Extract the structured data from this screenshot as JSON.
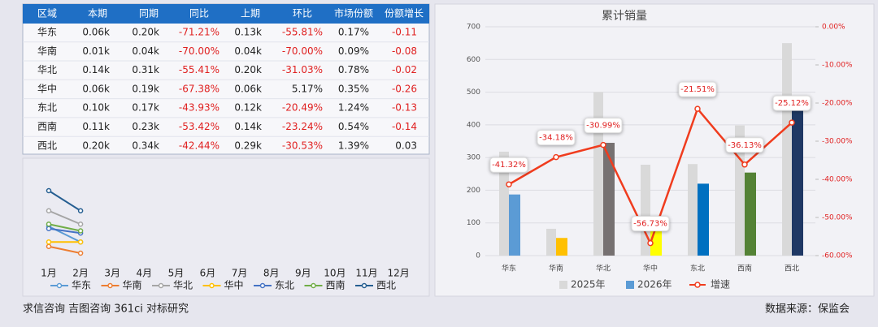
{
  "table": {
    "header": [
      "区域",
      "本期",
      "同期",
      "同比",
      "上期",
      "环比",
      "市场份额",
      "份额增长"
    ],
    "rows": [
      [
        "华东",
        "0.06k",
        "0.20k",
        "-71.21%",
        "0.13k",
        "-55.81%",
        "0.17%",
        "-0.11"
      ],
      [
        "华南",
        "0.01k",
        "0.04k",
        "-70.00%",
        "0.04k",
        "-70.00%",
        "0.09%",
        "-0.08"
      ],
      [
        "华北",
        "0.14k",
        "0.31k",
        "-55.41%",
        "0.20k",
        "-31.03%",
        "0.78%",
        "-0.02"
      ],
      [
        "华中",
        "0.06k",
        "0.19k",
        "-67.38%",
        "0.06k",
        "5.17%",
        "0.35%",
        "-0.26"
      ],
      [
        "东北",
        "0.10k",
        "0.17k",
        "-43.93%",
        "0.12k",
        "-20.49%",
        "1.24%",
        "-0.13"
      ],
      [
        "西南",
        "0.11k",
        "0.23k",
        "-53.42%",
        "0.14k",
        "-23.24%",
        "0.54%",
        "-0.14"
      ],
      [
        "西北",
        "0.20k",
        "0.34k",
        "-42.44%",
        "0.29k",
        "-30.53%",
        "1.39%",
        "0.03"
      ]
    ]
  },
  "chart_data": [
    {
      "type": "line",
      "categories": [
        "1月",
        "2月",
        "3月",
        "4月",
        "5月",
        "6月",
        "7月",
        "8月",
        "9月",
        "10月",
        "11月",
        "12月"
      ],
      "series": [
        {
          "name": "华东",
          "color": "#5b9bd5",
          "values": [
            130,
            60,
            null,
            null,
            null,
            null,
            null,
            null,
            null,
            null,
            null,
            null
          ]
        },
        {
          "name": "华南",
          "color": "#ed7d31",
          "values": [
            40,
            10,
            null,
            null,
            null,
            null,
            null,
            null,
            null,
            null,
            null,
            null
          ]
        },
        {
          "name": "华北",
          "color": "#a5a5a5",
          "values": [
            200,
            140,
            null,
            null,
            null,
            null,
            null,
            null,
            null,
            null,
            null,
            null
          ]
        },
        {
          "name": "华中",
          "color": "#ffc000",
          "values": [
            60,
            60,
            null,
            null,
            null,
            null,
            null,
            null,
            null,
            null,
            null,
            null
          ]
        },
        {
          "name": "东北",
          "color": "#4472c4",
          "values": [
            120,
            100,
            null,
            null,
            null,
            null,
            null,
            null,
            null,
            null,
            null,
            null
          ]
        },
        {
          "name": "西南",
          "color": "#70ad47",
          "values": [
            140,
            110,
            null,
            null,
            null,
            null,
            null,
            null,
            null,
            null,
            null,
            null
          ]
        },
        {
          "name": "西北",
          "color": "#255e91",
          "values": [
            290,
            200,
            null,
            null,
            null,
            null,
            null,
            null,
            null,
            null,
            null,
            null
          ]
        }
      ]
    },
    {
      "type": "bar",
      "title": "累计销量",
      "categories": [
        "华东",
        "华南",
        "华北",
        "华中",
        "东北",
        "西南",
        "西北"
      ],
      "series": [
        {
          "name": "2025年",
          "color": "#d9d9d9",
          "values": [
            318,
            82,
            500,
            278,
            280,
            398,
            650
          ]
        },
        {
          "name": "2026年",
          "color": "#5b9bd5",
          "colors": [
            "#5b9bd5",
            "#ffc000",
            "#767171",
            "#ffff00",
            "#0070c0",
            "#548235",
            "#1f3864"
          ],
          "values": [
            187,
            54,
            345,
            120,
            220,
            254,
            487
          ]
        },
        {
          "name": "增速",
          "color": "#f03c1e",
          "type": "line",
          "axis": "y2",
          "values": [
            -41.32,
            -34.18,
            -30.99,
            -56.73,
            -21.51,
            -36.13,
            -25.12
          ],
          "value_labels": [
            "-41.32%",
            "-34.18%",
            "-30.99%",
            "-56.73%",
            "-21.51%",
            "-36.13%",
            "-25.12%"
          ]
        }
      ],
      "ylim": [
        0,
        700
      ],
      "yticks": [
        0,
        100,
        200,
        300,
        400,
        500,
        600,
        700
      ],
      "y2lim": [
        -60,
        0
      ],
      "y2ticks": [
        {
          "value": 0,
          "label": "0.00%"
        },
        {
          "value": -10,
          "label": "-10.00%"
        },
        {
          "value": -20,
          "label": "-20.00%"
        },
        {
          "value": -30,
          "label": "-30.00%"
        },
        {
          "value": -40,
          "label": "-40.00%"
        },
        {
          "value": -50,
          "label": "-50.00%"
        },
        {
          "value": -60,
          "label": "-60.00%"
        }
      ],
      "grid": true
    }
  ],
  "footer": {
    "left": "求信咨询 吉图咨询 361ci 对标研究",
    "right": "数据来源：保监会"
  }
}
